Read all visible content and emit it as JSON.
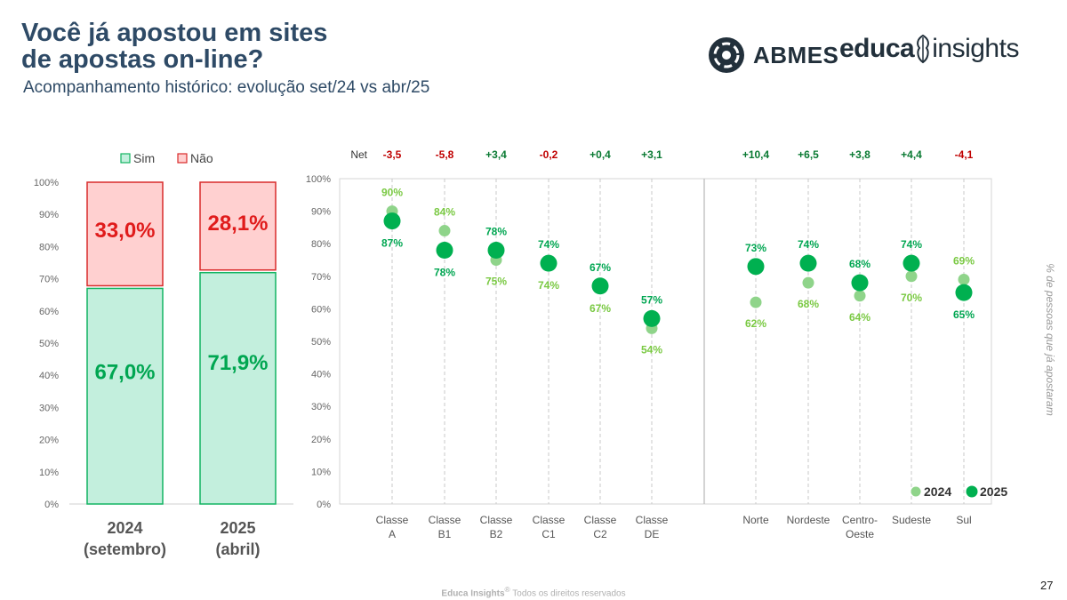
{
  "header": {
    "title_line1": "Você já apostou em sites",
    "title_line2": "de apostas on-line?",
    "subtitle": "Acompanhamento histórico: evolução set/24 vs abr/25"
  },
  "logos": {
    "abmes": "ABMES",
    "educa_bold": "educa",
    "educa_light": "insights"
  },
  "side_label": "% de pessoas que já apostaram",
  "footer": {
    "brand": "Educa Insights",
    "reg": "®",
    "rights": " Todos os direitos reservados"
  },
  "page_number": "27",
  "colors": {
    "sim_fill": "#c3efdd",
    "sim_stroke": "#12b462",
    "sim_text": "#00a651",
    "nao_fill": "#ffd0d0",
    "nao_stroke": "#d92b2b",
    "nao_text": "#e01b1b",
    "dot_2024": "#8fd48a",
    "dot_2025": "#00b050",
    "label_2024": "#7ac943",
    "label_2025": "#00a651",
    "net_positive": "#0a7a33",
    "net_negative": "#c00000"
  },
  "chart_data": [
    {
      "type": "bar",
      "stacked": true,
      "categories": [
        "2024\n(setembro)",
        "2025\n(abril)"
      ],
      "category_lines": [
        [
          "2024",
          "(setembro)"
        ],
        [
          "2025",
          "(abril)"
        ]
      ],
      "series": [
        {
          "name": "Sim",
          "values": [
            67.0,
            71.9
          ],
          "labels": [
            "67,0%",
            "71,9%"
          ]
        },
        {
          "name": "Não",
          "values": [
            33.0,
            28.1
          ],
          "labels": [
            "33,0%",
            "28,1%"
          ]
        }
      ],
      "ylim": [
        0,
        100
      ],
      "y_ticks": [
        "0%",
        "10%",
        "20%",
        "30%",
        "40%",
        "50%",
        "60%",
        "70%",
        "80%",
        "90%",
        "100%"
      ],
      "legend_position": "top"
    },
    {
      "type": "scatter",
      "categories": [
        [
          "Classe",
          "A"
        ],
        [
          "Classe",
          "B1"
        ],
        [
          "Classe",
          "B2"
        ],
        [
          "Classe",
          "C1"
        ],
        [
          "Classe",
          "C2"
        ],
        [
          "Classe",
          "DE"
        ],
        [
          "Norte"
        ],
        [
          "Nordeste"
        ],
        [
          "Centro-",
          "Oeste"
        ],
        [
          "Sudeste"
        ],
        [
          "Sul"
        ]
      ],
      "series": [
        {
          "name": "2024",
          "values": [
            90,
            84,
            75,
            74,
            67,
            54,
            62,
            68,
            64,
            70,
            69
          ],
          "labels": [
            "90%",
            "84%",
            "75%",
            "74%",
            "67%",
            "54%",
            "62%",
            "68%",
            "64%",
            "70%",
            "69%"
          ]
        },
        {
          "name": "2025",
          "values": [
            87,
            78,
            78,
            74,
            67,
            57,
            73,
            74,
            68,
            74,
            65
          ],
          "labels": [
            "87%",
            "78%",
            "78%",
            "74%",
            "67%",
            "57%",
            "73%",
            "74%",
            "68%",
            "74%",
            "65%"
          ]
        }
      ],
      "net_label": "Net",
      "net": [
        "-3,5",
        "-5,8",
        "+3,4",
        "-0,2",
        "+0,4",
        "+3,1",
        "+10,4",
        "+6,5",
        "+3,8",
        "+4,4",
        "-4,1"
      ],
      "ylim": [
        0,
        100
      ],
      "y_ticks": [
        "0%",
        "10%",
        "20%",
        "30%",
        "40%",
        "50%",
        "60%",
        "70%",
        "80%",
        "90%",
        "100%"
      ],
      "legend_position": "bottom-right"
    }
  ]
}
